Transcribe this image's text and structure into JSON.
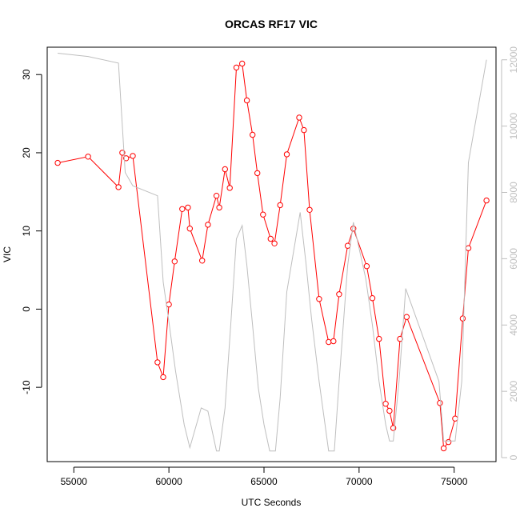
{
  "chart_data": {
    "type": "line",
    "title": "ORCAS RF17 VIC",
    "xlabel": "UTC Seconds",
    "ylabel": "VIC",
    "xlim": [
      53600,
      77200
    ],
    "ylim": [
      -19.5,
      33.5
    ],
    "y2lim": [
      -120,
      12380
    ],
    "x_ticks": [
      55000,
      60000,
      65000,
      70000,
      75000
    ],
    "y_ticks": [
      -10,
      0,
      10,
      20,
      30
    ],
    "y2_ticks": [
      0,
      2000,
      4000,
      6000,
      8000,
      10000,
      12000
    ],
    "grid": false,
    "colors": {
      "primary": "#ff0000",
      "secondary": "#bebebe",
      "frame": "#000000"
    },
    "series": [
      {
        "axis": "left",
        "style": "line-with-open-circles",
        "x": [
          54150,
          55750,
          57350,
          57550,
          57750,
          58100,
          59400,
          59700,
          60000,
          60300,
          60700,
          61000,
          61100,
          61750,
          62050,
          62500,
          62650,
          62950,
          63200,
          63550,
          63850,
          64100,
          64400,
          64650,
          64950,
          65350,
          65550,
          65850,
          66200,
          66850,
          67100,
          67400,
          67900,
          68400,
          68650,
          68950,
          69400,
          69700,
          70400,
          70700,
          71050,
          71400,
          71600,
          71800,
          72150,
          72500,
          74250,
          74450,
          74700,
          75050,
          75450,
          75750,
          76700
        ],
        "y": [
          18.7,
          19.5,
          15.6,
          20.0,
          19.3,
          19.6,
          -6.8,
          -8.7,
          0.6,
          6.1,
          12.8,
          13.0,
          10.3,
          6.2,
          10.8,
          14.5,
          13.0,
          17.9,
          15.5,
          30.9,
          31.4,
          26.7,
          22.3,
          17.4,
          12.1,
          9.0,
          8.4,
          13.3,
          19.8,
          24.5,
          22.9,
          12.7,
          1.3,
          -4.2,
          -4.1,
          1.9,
          8.1,
          10.3,
          5.5,
          1.4,
          -3.8,
          -12.1,
          -13.0,
          -15.2,
          -3.8,
          -1.0,
          -12.0,
          -17.8,
          -17.0,
          -14.0,
          -1.2,
          7.8,
          13.9
        ]
      },
      {
        "axis": "right",
        "style": "line",
        "x": [
          54150,
          55750,
          57350,
          57700,
          58100,
          59400,
          59700,
          60000,
          60350,
          60800,
          61100,
          61700,
          62050,
          62500,
          62650,
          62950,
          63250,
          63550,
          63850,
          64100,
          64400,
          64700,
          65000,
          65300,
          65600,
          65850,
          66200,
          66900,
          67200,
          67500,
          67900,
          68400,
          68700,
          68950,
          69400,
          69700,
          70350,
          70700,
          71050,
          71400,
          71600,
          71800,
          72100,
          72450,
          74200,
          74450,
          74700,
          75050,
          75400,
          75750,
          76700
        ],
        "y": [
          12200,
          12100,
          11900,
          8600,
          8200,
          7900,
          5300,
          4100,
          2600,
          1000,
          300,
          1500,
          1400,
          200,
          200,
          1500,
          4000,
          6600,
          7000,
          5800,
          4000,
          2100,
          1000,
          200,
          200,
          1800,
          5000,
          7400,
          5900,
          4200,
          2300,
          200,
          200,
          2300,
          5800,
          7100,
          5400,
          4000,
          2300,
          1000,
          500,
          500,
          2300,
          5100,
          2300,
          500,
          500,
          500,
          2300,
          8900,
          12000
        ]
      }
    ]
  }
}
